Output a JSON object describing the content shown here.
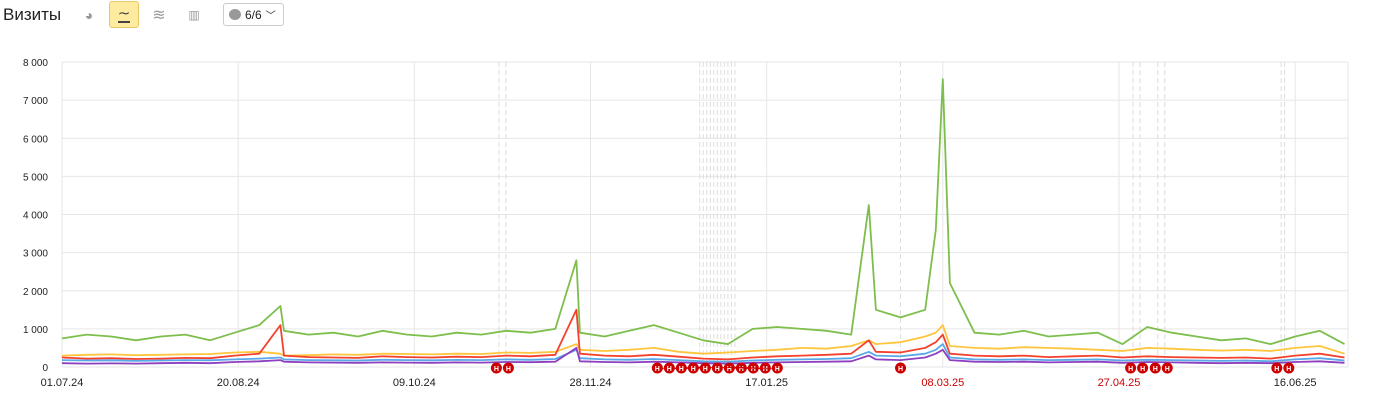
{
  "header": {
    "title": "Визиты",
    "series_selector_label": "6/6"
  },
  "toolbar_icons": [
    "pie-chart-icon",
    "line-chart-icon",
    "area-chart-icon",
    "bar-chart-icon"
  ],
  "chart_data": {
    "type": "line",
    "ylim": [
      0,
      8000
    ],
    "yticks": [
      0,
      1000,
      2000,
      3000,
      4000,
      5000,
      6000,
      7000,
      8000
    ],
    "ytick_labels": [
      "0",
      "1 000",
      "2 000",
      "3 000",
      "4 000",
      "5 000",
      "6 000",
      "7 000",
      "8 000"
    ],
    "xlim": [
      "01.07.24",
      "01.07.25"
    ],
    "xticks": [
      {
        "label": "01.07.24",
        "color": "#222222"
      },
      {
        "label": "20.08.24",
        "color": "#222222"
      },
      {
        "label": "09.10.24",
        "color": "#222222"
      },
      {
        "label": "28.11.24",
        "color": "#222222"
      },
      {
        "label": "17.01.25",
        "color": "#222222"
      },
      {
        "label": "08.03.25",
        "color": "#cc0000"
      },
      {
        "label": "27.04.25",
        "color": "#cc0000"
      },
      {
        "label": "16.06.25",
        "color": "#222222"
      }
    ],
    "grid": true,
    "x": [
      "01.07.24",
      "08.07.24",
      "15.07.24",
      "22.07.24",
      "29.07.24",
      "05.08.24",
      "12.08.24",
      "19.08.24",
      "26.08.24",
      "01.09.24",
      "02.09.24",
      "09.09.24",
      "16.09.24",
      "23.09.24",
      "30.09.24",
      "07.10.24",
      "14.10.24",
      "21.10.24",
      "28.10.24",
      "04.11.24",
      "11.11.24",
      "18.11.24",
      "24.11.24",
      "25.11.24",
      "02.12.24",
      "09.12.24",
      "16.12.24",
      "23.12.24",
      "30.12.24",
      "06.01.25",
      "13.01.25",
      "20.01.25",
      "27.01.25",
      "03.02.25",
      "10.02.25",
      "15.02.25",
      "17.02.25",
      "24.02.25",
      "03.03.25",
      "06.03.25",
      "08.03.25",
      "10.03.25",
      "17.03.25",
      "24.03.25",
      "31.03.25",
      "07.04.25",
      "14.04.25",
      "21.04.25",
      "28.04.25",
      "05.05.25",
      "12.05.25",
      "19.05.25",
      "26.05.25",
      "02.06.25",
      "09.06.25",
      "16.06.25",
      "23.06.25",
      "30.06.25"
    ],
    "series": [
      {
        "color": "#7dbe4c",
        "values": [
          750,
          850,
          800,
          700,
          800,
          850,
          700,
          900,
          1100,
          1600,
          950,
          850,
          900,
          800,
          950,
          850,
          800,
          900,
          850,
          950,
          900,
          1000,
          2800,
          900,
          800,
          950,
          1100,
          900,
          700,
          600,
          1000,
          1050,
          1000,
          950,
          850,
          4250,
          1500,
          1300,
          1500,
          3600,
          7550,
          2200,
          900,
          850,
          950,
          800,
          850,
          900,
          600,
          1050,
          900,
          800,
          700,
          750,
          600,
          800,
          950,
          600
        ]
      },
      {
        "color": "#ffc53d",
        "values": [
          300,
          320,
          330,
          310,
          320,
          330,
          340,
          380,
          400,
          350,
          300,
          310,
          330,
          320,
          350,
          340,
          330,
          350,
          340,
          380,
          370,
          400,
          600,
          450,
          420,
          450,
          500,
          400,
          350,
          380,
          420,
          450,
          500,
          480,
          550,
          700,
          600,
          650,
          800,
          900,
          1100,
          550,
          500,
          480,
          520,
          500,
          480,
          450,
          420,
          500,
          480,
          450,
          430,
          450,
          420,
          500,
          550,
          350
        ]
      },
      {
        "color": "#f4412c",
        "values": [
          250,
          220,
          230,
          210,
          220,
          240,
          230,
          300,
          350,
          1100,
          300,
          260,
          250,
          240,
          280,
          260,
          250,
          270,
          260,
          300,
          280,
          320,
          1500,
          350,
          300,
          280,
          320,
          270,
          220,
          200,
          250,
          280,
          300,
          320,
          350,
          700,
          400,
          380,
          500,
          650,
          850,
          350,
          300,
          280,
          300,
          260,
          280,
          300,
          250,
          280,
          260,
          250,
          240,
          250,
          220,
          300,
          350,
          250
        ]
      },
      {
        "color": "#5aa8e8",
        "values": [
          180,
          170,
          175,
          160,
          170,
          180,
          175,
          200,
          220,
          250,
          200,
          180,
          175,
          170,
          190,
          180,
          175,
          185,
          180,
          200,
          190,
          210,
          450,
          230,
          200,
          190,
          210,
          180,
          150,
          140,
          170,
          190,
          200,
          210,
          230,
          400,
          300,
          280,
          350,
          450,
          600,
          250,
          200,
          190,
          200,
          180,
          190,
          200,
          170,
          190,
          180,
          170,
          160,
          170,
          150,
          200,
          230,
          170
        ]
      },
      {
        "color": "#8e3fbf",
        "values": [
          100,
          90,
          95,
          90,
          100,
          110,
          100,
          130,
          150,
          180,
          140,
          120,
          115,
          110,
          120,
          115,
          110,
          120,
          115,
          130,
          125,
          140,
          500,
          150,
          130,
          120,
          140,
          120,
          100,
          90,
          110,
          120,
          130,
          140,
          150,
          300,
          200,
          180,
          250,
          350,
          450,
          180,
          140,
          130,
          140,
          120,
          130,
          140,
          110,
          130,
          120,
          110,
          100,
          110,
          100,
          130,
          150,
          110
        ]
      }
    ],
    "holiday_marker_label": "Н",
    "holiday_color": "#cc0000",
    "holidays": [
      "02.11.24",
      "04.11.24",
      "29.12.24",
      "30.12.24",
      "31.12.24",
      "01.01.25",
      "02.01.25",
      "03.01.25",
      "04.01.25",
      "05.01.25",
      "06.01.25",
      "07.01.25",
      "08.01.25",
      "24.02.25",
      "01.05.25",
      "03.05.25",
      "08.05.25",
      "10.05.25",
      "12.06.25",
      "13.06.25"
    ]
  }
}
